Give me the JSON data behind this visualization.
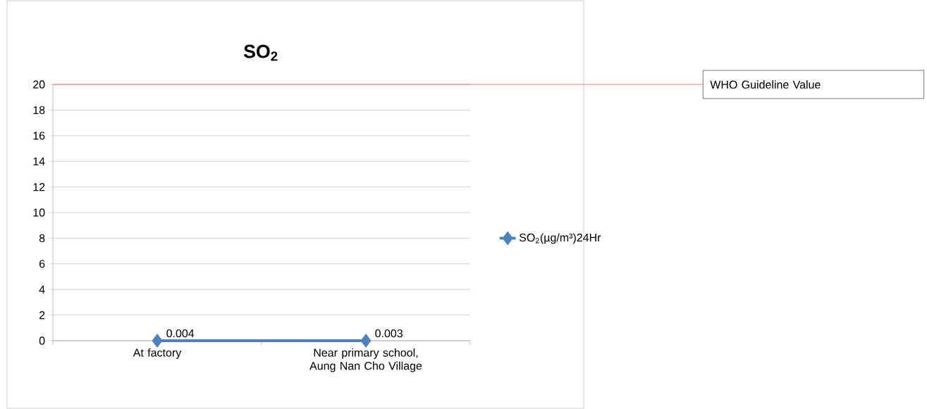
{
  "chart_data": {
    "type": "line",
    "title": "SO$_{2}$",
    "categories": [
      "At factory",
      "Near primary school, Aung Nan Cho Village"
    ],
    "series": [
      {
        "name": "SO$_{2}$(µg/m³)24Hr",
        "color": "#4f81bd",
        "values": [
          0.004,
          0.003
        ]
      }
    ],
    "ylim": [
      0,
      20
    ],
    "yticks": [
      0,
      2,
      4,
      6,
      8,
      10,
      12,
      14,
      16,
      18,
      20
    ],
    "grid": "y",
    "legend": "right",
    "marker": "diamond",
    "line_style": "solid",
    "data_labels": true,
    "ref_lines": [
      {
        "axis": "y",
        "value": 20,
        "label": "WHO Guideline Value",
        "color": "#ff0000"
      }
    ]
  }
}
